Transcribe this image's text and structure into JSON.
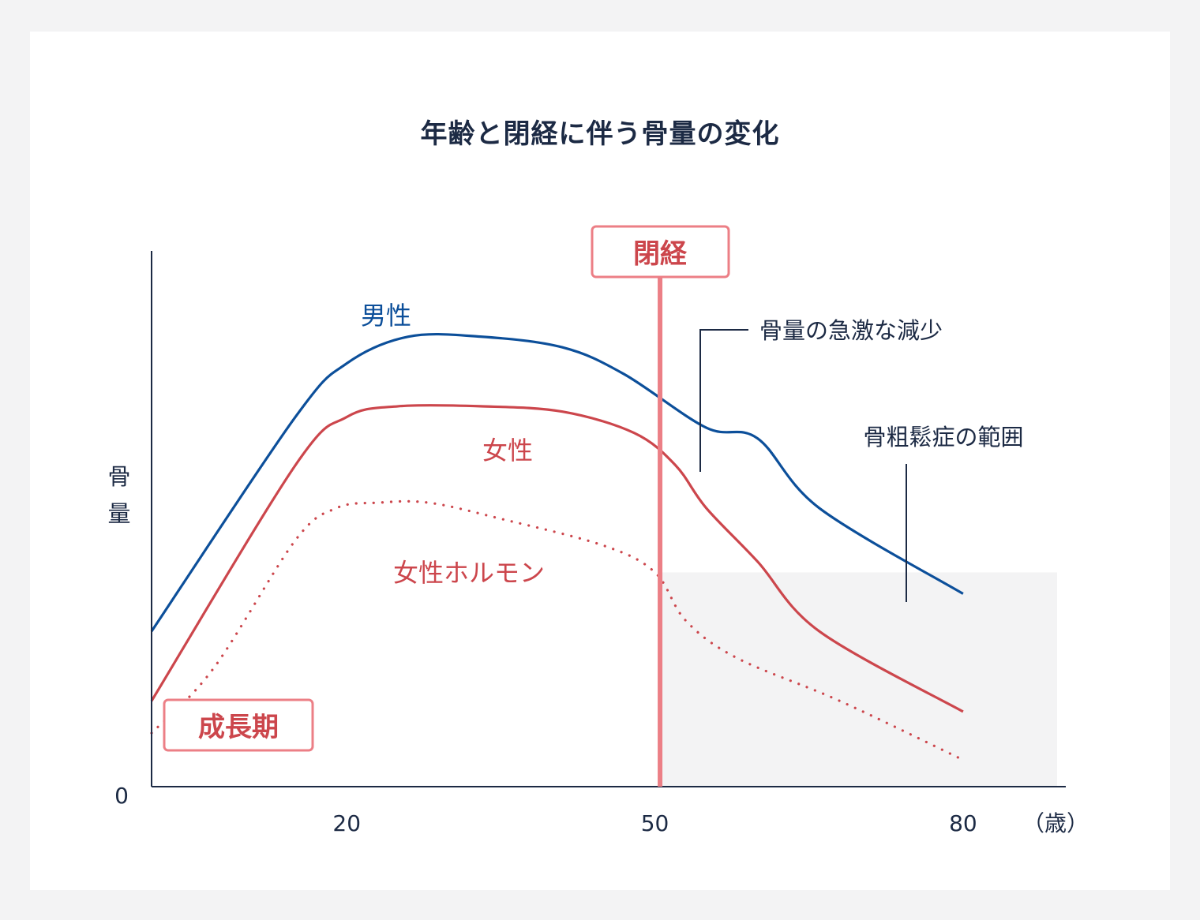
{
  "colors": {
    "male": "#0c4f9a",
    "female": "#cc464c",
    "menopause_line": "#ec7f86",
    "osteoporosis_zone": "#f3f3f4",
    "axis": "#1c2a44"
  },
  "chart_data": {
    "type": "line",
    "title": "年齢と閉経に伴う骨量の変化",
    "ylabel": "骨量",
    "y_zero_label": "0",
    "x_unit_label": "（歳）",
    "x_ticks": [
      {
        "value": 20,
        "label": "20"
      },
      {
        "value": 50,
        "label": "50"
      },
      {
        "value": 80,
        "label": "80"
      }
    ],
    "xlim": [
      1,
      90
    ],
    "ylim": [
      0,
      100
    ],
    "series": [
      {
        "name": "男性",
        "style": "solid",
        "color_key": "male",
        "points": [
          [
            1,
            29
          ],
          [
            15,
            69
          ],
          [
            20,
            79
          ],
          [
            26,
            84
          ],
          [
            33,
            84
          ],
          [
            41,
            82
          ],
          [
            47,
            77
          ],
          [
            55,
            67
          ],
          [
            60,
            65
          ],
          [
            66,
            52
          ],
          [
            80,
            36
          ]
        ]
      },
      {
        "name": "女性",
        "style": "solid",
        "color_key": "female",
        "points": [
          [
            1,
            16
          ],
          [
            15,
            60
          ],
          [
            20,
            69
          ],
          [
            25,
            71
          ],
          [
            33,
            71
          ],
          [
            41,
            70
          ],
          [
            48,
            66
          ],
          [
            52,
            60
          ],
          [
            55,
            52
          ],
          [
            60,
            42
          ],
          [
            66,
            29
          ],
          [
            80,
            14
          ]
        ]
      },
      {
        "name": "女性ホルモン",
        "style": "dotted",
        "color_key": "female",
        "points": [
          [
            1,
            10
          ],
          [
            7,
            22
          ],
          [
            15,
            46
          ],
          [
            19,
            52
          ],
          [
            23,
            53
          ],
          [
            28,
            53
          ],
          [
            35,
            50
          ],
          [
            45,
            45
          ],
          [
            50,
            40
          ],
          [
            53,
            31
          ],
          [
            58,
            24
          ],
          [
            68,
            16
          ],
          [
            80,
            5
          ]
        ]
      }
    ],
    "menopause_age": 50.5,
    "osteoporosis_threshold": 40,
    "annotations": {
      "menopause": "閉経",
      "growth_period": "成長期",
      "rapid_decrease": "骨量の急激な減少",
      "osteoporosis_range": "骨粗鬆症の範囲"
    }
  }
}
